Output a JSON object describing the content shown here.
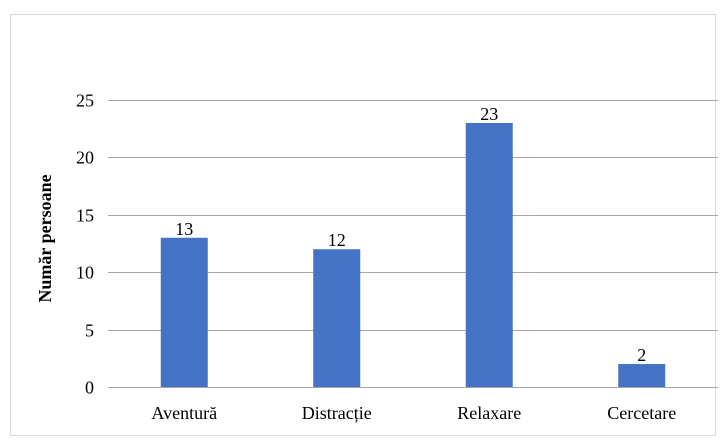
{
  "chart_data": {
    "type": "bar",
    "categories": [
      "Aventură",
      "Distracție",
      "Relaxare",
      "Cercetare"
    ],
    "values": [
      13,
      12,
      23,
      2
    ],
    "data_labels": [
      "13",
      "12",
      "23",
      "2"
    ],
    "title": "",
    "xlabel": "",
    "ylabel": "Număr persoane",
    "ylim": [
      0,
      25
    ],
    "yticks": [
      0,
      5,
      10,
      15,
      20,
      25
    ],
    "grid": true,
    "legend": "none",
    "colors": {
      "bar": "#4472c4",
      "grid": "#a6a6a6",
      "frame": "#d9d9d9"
    }
  }
}
